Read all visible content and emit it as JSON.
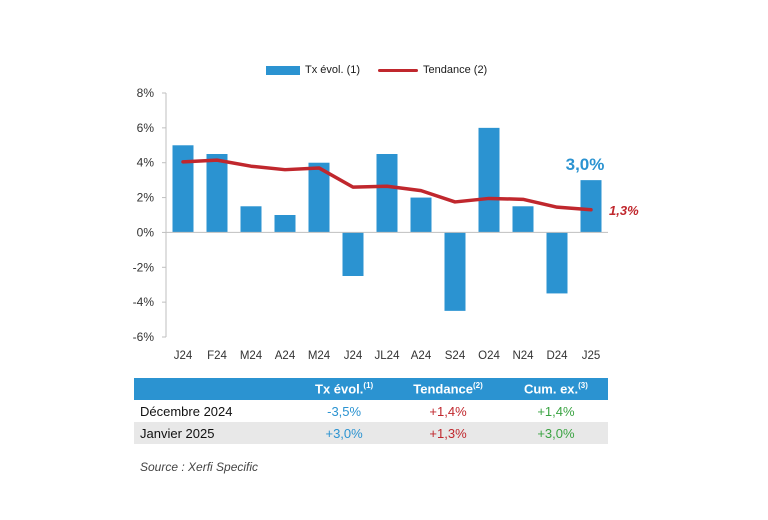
{
  "chart_data": {
    "type": "bar",
    "categories": [
      "J24",
      "F24",
      "M24",
      "A24",
      "M24",
      "J24",
      "JL24",
      "A24",
      "S24",
      "O24",
      "N24",
      "D24",
      "J25"
    ],
    "series": [
      {
        "name": "Tx évol. (1)",
        "type": "bar",
        "color": "#2b93d1",
        "values": [
          5.0,
          4.5,
          1.5,
          1.0,
          4.0,
          -2.5,
          4.5,
          2.0,
          -4.5,
          6.0,
          1.5,
          -3.5,
          3.0
        ]
      },
      {
        "name": "Tendance (2)",
        "type": "line",
        "color": "#c0272d",
        "values": [
          4.05,
          4.15,
          3.8,
          3.6,
          3.7,
          2.6,
          2.65,
          2.4,
          1.75,
          1.95,
          1.9,
          1.45,
          1.3
        ]
      }
    ],
    "ylim": [
      -6,
      8
    ],
    "yticks": [
      "8%",
      "6%",
      "4%",
      "2%",
      "0%",
      "-2%",
      "-4%",
      "-6%"
    ],
    "ytick_values": [
      8,
      6,
      4,
      2,
      0,
      -2,
      -4,
      -6
    ],
    "annotations": {
      "last_bar": "3,0%",
      "last_trend": "1,3%"
    },
    "legend_position": "top-center",
    "grid": false
  },
  "legend": {
    "bar_label": "Tx évol. (1)",
    "line_label": "Tendance (2)"
  },
  "table": {
    "headers": {
      "col1": "Tx évol.",
      "col1_sup": "(1)",
      "col2": "Tendance",
      "col2_sup": "(2)",
      "col3": "Cum. ex.",
      "col3_sup": "(3)"
    },
    "rows": [
      {
        "label": "Décembre 2024",
        "tx": "-3,5%",
        "tendance": "+1,4%",
        "cum": "+1,4%"
      },
      {
        "label": "Janvier 2025",
        "tx": "+3,0%",
        "tendance": "+1,3%",
        "cum": "+3,0%"
      }
    ]
  },
  "source": "Source : Xerfi Specific"
}
